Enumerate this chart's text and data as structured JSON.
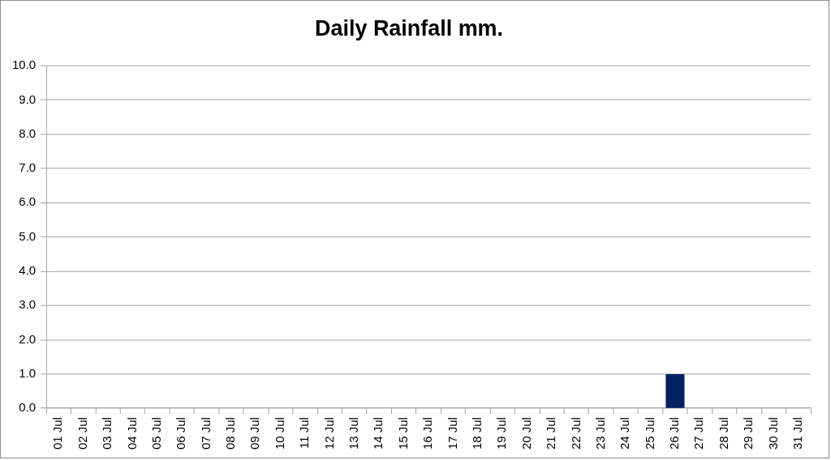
{
  "chart_data": {
    "type": "bar",
    "title": "Daily Rainfall mm.",
    "categories": [
      "01 Jul",
      "02 Jul",
      "03 Jul",
      "04 Jul",
      "05 Jul",
      "06 Jul",
      "07 Jul",
      "08 Jul",
      "09 Jul",
      "10 Jul",
      "11 Jul",
      "12 Jul",
      "13 Jul",
      "14 Jul",
      "15 Jul",
      "16 Jul",
      "17 Jul",
      "18 Jul",
      "19 Jul",
      "20 Jul",
      "21 Jul",
      "22 Jul",
      "23 Jul",
      "24 Jul",
      "25 Jul",
      "26 Jul",
      "27 Jul",
      "28 Jul",
      "29 Jul",
      "30 Jul",
      "31 Jul"
    ],
    "values": [
      0,
      0,
      0,
      0,
      0,
      0,
      0,
      0,
      0,
      0,
      0,
      0,
      0,
      0,
      0,
      0,
      0,
      0,
      0,
      0,
      0,
      0,
      0,
      0,
      0,
      1.0,
      0,
      0,
      0,
      0,
      0
    ],
    "color": "#002060",
    "ylim": [
      0,
      10
    ],
    "yticks": [
      {
        "value": 0,
        "label": "0.0"
      },
      {
        "value": 1,
        "label": "1.0"
      },
      {
        "value": 2,
        "label": "2.0"
      },
      {
        "value": 3,
        "label": "3.0"
      },
      {
        "value": 4,
        "label": "4.0"
      },
      {
        "value": 5,
        "label": "5.0"
      },
      {
        "value": 6,
        "label": "6.0"
      },
      {
        "value": 7,
        "label": "7.0"
      },
      {
        "value": 8,
        "label": "8.0"
      },
      {
        "value": 9,
        "label": "9.0"
      },
      {
        "value": 10,
        "label": "10.0"
      }
    ],
    "grid": "y"
  }
}
